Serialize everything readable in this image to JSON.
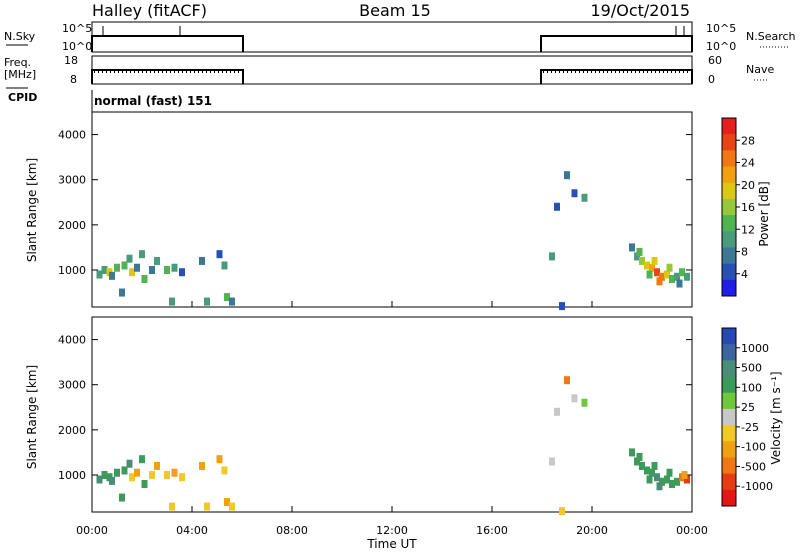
{
  "header": {
    "station": "Halley (fitACF)",
    "beam": "Beam 15",
    "date": "19/Oct/2015"
  },
  "top_panels": {
    "nsky_label": "N.Sky",
    "nsky_ticks": [
      "10^5",
      "10^0"
    ],
    "nsearch_label": "N.Search",
    "nsearch_ticks": [
      "10^5",
      "10^0"
    ],
    "freq_label": "Freq.",
    "freq_unit": "[MHz]",
    "freq_ticks": [
      "18",
      "8"
    ],
    "nave_label": "Nave",
    "nave_ticks": [
      "60",
      "0"
    ],
    "cpid_label": "CPID",
    "cpid_value": "normal (fast) 151"
  },
  "colors": {
    "power_scale": [
      "#1e1ee6",
      "#2850b4",
      "#3c7896",
      "#4a9a7c",
      "#52b450",
      "#96c83c",
      "#dcc814",
      "#f0a010",
      "#f07814",
      "#e64614",
      "#e61e1e"
    ],
    "velocity_scale": [
      "#2846b4",
      "#3c64a0",
      "#4a8c78",
      "#3c9a5a",
      "#6ec83c",
      "#c8c8c8",
      "#f0c828",
      "#f0a014",
      "#f07814",
      "#e63c14",
      "#e61414"
    ]
  },
  "chart_data": [
    {
      "type": "heatmap",
      "name": "power",
      "ylabel": "Slant Range [km]",
      "ylim": [
        180,
        4500
      ],
      "yticks": [
        "1000",
        "2000",
        "3000",
        "4000"
      ],
      "xlim": [
        0,
        24
      ],
      "colorbar_label": "Power [dB]",
      "colorbar_range": [
        0,
        32
      ],
      "colorbar_ticks": [
        "4",
        "8",
        "12",
        "16",
        "20",
        "24",
        "28"
      ],
      "points": [
        [
          0.3,
          900,
          10
        ],
        [
          0.5,
          1000,
          8
        ],
        [
          0.7,
          950,
          18
        ],
        [
          0.8,
          870,
          6
        ],
        [
          1.0,
          1050,
          12
        ],
        [
          1.3,
          1100,
          14
        ],
        [
          1.5,
          1250,
          10
        ],
        [
          1.6,
          950,
          20
        ],
        [
          1.8,
          1050,
          6
        ],
        [
          2.0,
          1350,
          10
        ],
        [
          2.1,
          800,
          12
        ],
        [
          2.4,
          1000,
          6
        ],
        [
          2.6,
          1200,
          8
        ],
        [
          3.0,
          1000,
          12
        ],
        [
          3.3,
          1050,
          8
        ],
        [
          3.6,
          950,
          4
        ],
        [
          1.2,
          500,
          6
        ],
        [
          3.2,
          300,
          8
        ],
        [
          4.4,
          1200,
          6
        ],
        [
          5.1,
          1350,
          4
        ],
        [
          5.3,
          1100,
          10
        ],
        [
          4.6,
          300,
          8
        ],
        [
          5.4,
          400,
          14
        ],
        [
          5.6,
          300,
          6
        ],
        [
          18.4,
          1300,
          10
        ],
        [
          18.6,
          2400,
          4
        ],
        [
          19.0,
          3100,
          6
        ],
        [
          19.3,
          2700,
          4
        ],
        [
          19.7,
          2600,
          8
        ],
        [
          18.8,
          200,
          4
        ],
        [
          21.6,
          1500,
          6
        ],
        [
          21.8,
          1300,
          10
        ],
        [
          22.0,
          1200,
          16
        ],
        [
          22.2,
          1100,
          20
        ],
        [
          22.4,
          1050,
          22
        ],
        [
          22.6,
          950,
          28
        ],
        [
          22.8,
          850,
          26
        ],
        [
          23.0,
          900,
          20
        ],
        [
          23.2,
          800,
          14
        ],
        [
          23.4,
          850,
          10
        ],
        [
          23.6,
          950,
          12
        ],
        [
          23.8,
          850,
          8
        ],
        [
          21.9,
          1400,
          12
        ],
        [
          22.5,
          1200,
          18
        ],
        [
          22.7,
          750,
          24
        ],
        [
          23.1,
          1050,
          16
        ],
        [
          22.3,
          900,
          12
        ],
        [
          23.5,
          700,
          6
        ]
      ]
    },
    {
      "type": "heatmap",
      "name": "velocity",
      "ylabel": "Slant Range [km]",
      "ylim": [
        180,
        4500
      ],
      "yticks": [
        "1000",
        "2000",
        "3000",
        "4000"
      ],
      "xlim": [
        0,
        24
      ],
      "xticks": [
        "00:00",
        "04:00",
        "08:00",
        "12:00",
        "16:00",
        "20:00",
        "00:00"
      ],
      "xlabel": "Time UT",
      "colorbar_label": "Velocity [m s⁻¹]",
      "colorbar_ticks": [
        "1000",
        "500",
        "100",
        "25",
        "-25",
        "-100",
        "-500",
        "-1000"
      ],
      "points": [
        [
          0.3,
          900,
          2
        ],
        [
          0.5,
          1000,
          3
        ],
        [
          0.7,
          950,
          3
        ],
        [
          0.8,
          870,
          2
        ],
        [
          1.0,
          1050,
          3
        ],
        [
          1.3,
          1100,
          3
        ],
        [
          1.5,
          1250,
          2
        ],
        [
          1.6,
          950,
          6
        ],
        [
          1.8,
          1050,
          7
        ],
        [
          2.0,
          1350,
          3
        ],
        [
          2.1,
          800,
          3
        ],
        [
          2.4,
          1000,
          6
        ],
        [
          2.6,
          1200,
          7
        ],
        [
          3.0,
          1000,
          6
        ],
        [
          3.3,
          1050,
          7
        ],
        [
          3.6,
          950,
          6
        ],
        [
          1.2,
          500,
          3
        ],
        [
          3.2,
          300,
          6
        ],
        [
          4.4,
          1200,
          7
        ],
        [
          5.1,
          1350,
          7
        ],
        [
          5.3,
          1100,
          6
        ],
        [
          4.6,
          300,
          6
        ],
        [
          5.4,
          400,
          7
        ],
        [
          5.6,
          300,
          6
        ],
        [
          18.4,
          1300,
          5
        ],
        [
          18.6,
          2400,
          5
        ],
        [
          19.0,
          3100,
          8
        ],
        [
          19.3,
          2700,
          5
        ],
        [
          19.7,
          2600,
          4
        ],
        [
          18.8,
          200,
          6
        ],
        [
          21.6,
          1500,
          3
        ],
        [
          21.8,
          1300,
          3
        ],
        [
          22.0,
          1200,
          3
        ],
        [
          22.2,
          1100,
          3
        ],
        [
          22.4,
          1050,
          3
        ],
        [
          22.6,
          950,
          2
        ],
        [
          22.8,
          850,
          3
        ],
        [
          23.0,
          900,
          3
        ],
        [
          23.2,
          800,
          3
        ],
        [
          23.4,
          850,
          3
        ],
        [
          23.6,
          950,
          8
        ],
        [
          23.8,
          900,
          9
        ],
        [
          21.9,
          1400,
          3
        ],
        [
          22.5,
          1200,
          3
        ],
        [
          22.7,
          750,
          2
        ],
        [
          23.1,
          1050,
          3
        ],
        [
          22.3,
          900,
          3
        ],
        [
          23.7,
          1000,
          7
        ]
      ]
    }
  ]
}
